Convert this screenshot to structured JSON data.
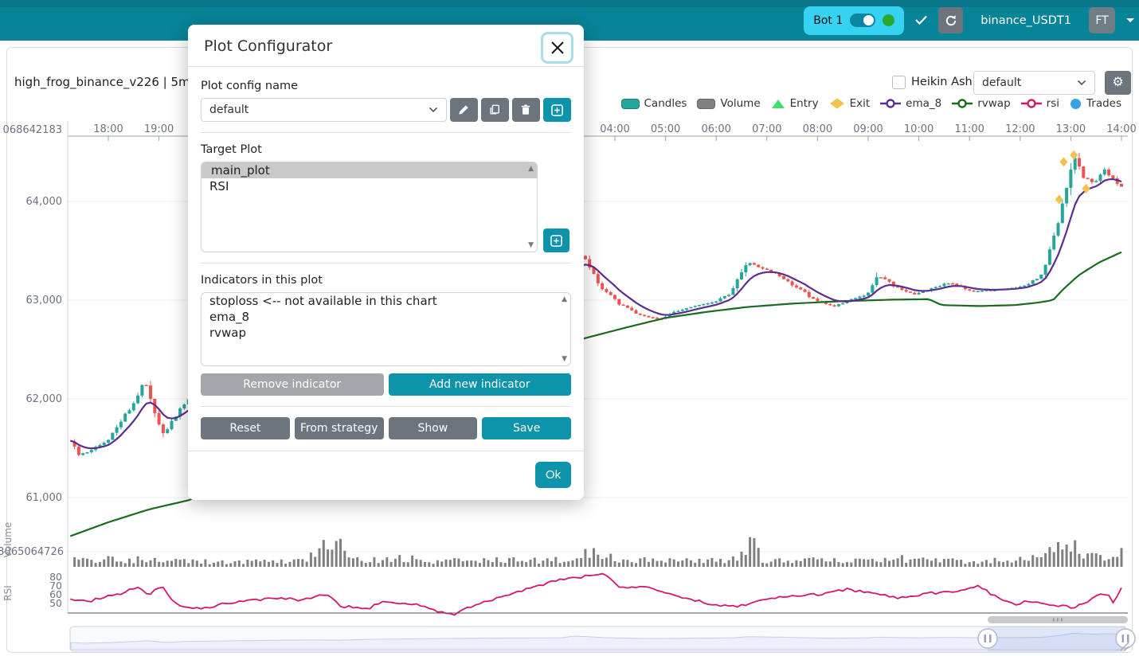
{
  "navbar": {
    "bot": {
      "label": "Bot 1",
      "online_color": "#2aa82a",
      "pill_bg": "#35d2f2"
    },
    "pair_text": "binance_USDT1",
    "avatar_text": "FT"
  },
  "chart_header": {
    "title": "high_frog_binance_v226 | 5m",
    "heikin_ashi_label": "Heikin Ashi",
    "plot_select_value": "default"
  },
  "legend": {
    "items": [
      {
        "label": "Candles",
        "color": "#26a69a",
        "shape": "rect"
      },
      {
        "label": "Volume",
        "color": "#808080",
        "shape": "rect"
      },
      {
        "label": "Entry",
        "color": "#3ce06a",
        "shape": "triangle"
      },
      {
        "label": "Exit",
        "color": "#f2c14e",
        "shape": "diamond"
      },
      {
        "label": "ema_8",
        "color": "#5c2d91",
        "shape": "line-circle"
      },
      {
        "label": "rvwap",
        "color": "#1b6b1f",
        "shape": "line-circle"
      },
      {
        "label": "rsi",
        "color": "#d6156f",
        "shape": "line-circle"
      },
      {
        "label": "Trades",
        "color": "#38a1e0",
        "shape": "circle"
      }
    ]
  },
  "modal": {
    "title": "Plot Configurator",
    "config_name_label": "Plot config name",
    "config_select_value": "default",
    "target_plot_label": "Target Plot",
    "target_plots": [
      "main_plot",
      "RSI"
    ],
    "selected_target": "main_plot",
    "indicators_label": "Indicators in this plot",
    "indicators": [
      "stoploss <-- not available in this chart",
      "ema_8",
      "rvwap"
    ],
    "remove_indicator_label": "Remove indicator",
    "add_indicator_label": "Add new indicator",
    "reset_label": "Reset",
    "from_strategy_label": "From strategy",
    "show_label": "Show",
    "save_label": "Save",
    "ok_label": "Ok"
  },
  "chart_data": {
    "type": "candlestick",
    "title": "high_frog_binance_v226 | 5m",
    "timeframe": "5m",
    "x_unit": "hours; 18=18:00 prev day, 28=04:00, 38=14:00",
    "time_ticks": [
      [
        18,
        "18:00"
      ],
      [
        19,
        "19:00"
      ],
      [
        28,
        "04:00"
      ],
      [
        29,
        "05:00"
      ],
      [
        30,
        "06:00"
      ],
      [
        31,
        "07:00"
      ],
      [
        32,
        "08:00"
      ],
      [
        33,
        "09:00"
      ],
      [
        34,
        "10:00"
      ],
      [
        35,
        "11:00"
      ],
      [
        36,
        "12:00"
      ],
      [
        37,
        "13:00"
      ],
      [
        38,
        "14:00"
      ]
    ],
    "price_ticks": [
      [
        "068642183",
        64726
      ],
      [
        "64,000",
        64000
      ],
      [
        "63,000",
        63000
      ],
      [
        "62,000",
        62000
      ],
      [
        "61,000",
        61000
      ]
    ],
    "volume_axis_label": "3065064726",
    "rsi_ticks": [
      80,
      70,
      60,
      50
    ],
    "pane_labels": {
      "volume": "Volume",
      "rsi": "RSI"
    },
    "colors": {
      "up": "#26a69a",
      "down": "#ef5350",
      "volume": "#808080",
      "ema": "#5c2d91",
      "rvwap": "#1b6b1f",
      "rsi": "#d6156f",
      "exit": "#f2c14e",
      "entry": "#3ce06a"
    },
    "series": {
      "candles": [
        [
          17.2,
          61580
        ],
        [
          17.45,
          61430
        ],
        [
          17.7,
          61500
        ],
        [
          17.95,
          61560
        ],
        [
          18.2,
          61750
        ],
        [
          18.5,
          61950
        ],
        [
          18.72,
          62180
        ],
        [
          18.9,
          61900
        ],
        [
          19.08,
          61630
        ],
        [
          19.3,
          61800
        ],
        [
          19.55,
          61980
        ],
        [
          20,
          62050
        ],
        [
          21,
          62250
        ],
        [
          22,
          62400
        ],
        [
          22.5,
          62300
        ],
        [
          23,
          62550
        ],
        [
          24,
          62750
        ],
        [
          25,
          62900
        ],
        [
          26,
          63000
        ],
        [
          26.9,
          63060
        ],
        [
          27.15,
          63580
        ],
        [
          27.4,
          63420
        ],
        [
          27.7,
          63150
        ],
        [
          28.1,
          62960
        ],
        [
          28.5,
          62850
        ],
        [
          28.9,
          62800
        ],
        [
          29.2,
          62890
        ],
        [
          29.6,
          62940
        ],
        [
          30,
          62990
        ],
        [
          30.3,
          63070
        ],
        [
          30.6,
          63400
        ],
        [
          30.85,
          63330
        ],
        [
          31.2,
          63270
        ],
        [
          31.6,
          63120
        ],
        [
          32,
          62990
        ],
        [
          32.35,
          62940
        ],
        [
          32.7,
          63010
        ],
        [
          33,
          63070
        ],
        [
          33.15,
          63260
        ],
        [
          33.5,
          63150
        ],
        [
          33.9,
          63050
        ],
        [
          34.2,
          63110
        ],
        [
          34.6,
          63180
        ],
        [
          35,
          63090
        ],
        [
          35.4,
          63100
        ],
        [
          35.8,
          63120
        ],
        [
          36.1,
          63150
        ],
        [
          36.45,
          63260
        ],
        [
          36.7,
          63700
        ],
        [
          36.9,
          64150
        ],
        [
          37.05,
          64480
        ],
        [
          37.2,
          64280
        ],
        [
          37.45,
          64180
        ],
        [
          37.65,
          64320
        ],
        [
          37.8,
          64240
        ],
        [
          38,
          64140
        ]
      ],
      "rvwap": [
        [
          17.2,
          60600
        ],
        [
          18,
          60750
        ],
        [
          18.8,
          60880
        ],
        [
          19.6,
          60975
        ],
        [
          20.5,
          61180
        ],
        [
          21.5,
          61480
        ],
        [
          22.5,
          61800
        ],
        [
          23.5,
          62100
        ],
        [
          24.5,
          62330
        ],
        [
          25.5,
          62480
        ],
        [
          26.5,
          62560
        ],
        [
          27.3,
          62600
        ],
        [
          28.2,
          62720
        ],
        [
          29,
          62820
        ],
        [
          29.8,
          62880
        ],
        [
          30.6,
          62930
        ],
        [
          31.5,
          62965
        ],
        [
          32.5,
          62990
        ],
        [
          33.5,
          63005
        ],
        [
          34.2,
          63010
        ],
        [
          34.45,
          62950
        ],
        [
          35.2,
          62940
        ],
        [
          35.9,
          62950
        ],
        [
          36.35,
          62975
        ],
        [
          36.65,
          63000
        ],
        [
          36.85,
          63110
        ],
        [
          37.15,
          63250
        ],
        [
          37.55,
          63380
        ],
        [
          38.1,
          63510
        ]
      ],
      "rsi": [
        [
          17.2,
          54
        ],
        [
          17.6,
          52
        ],
        [
          17.9,
          57
        ],
        [
          18.2,
          60
        ],
        [
          18.55,
          68
        ],
        [
          18.8,
          60
        ],
        [
          19.05,
          70
        ],
        [
          19.35,
          48
        ],
        [
          19.8,
          44
        ],
        [
          20.3,
          50
        ],
        [
          20.8,
          53
        ],
        [
          21.3,
          57
        ],
        [
          21.8,
          54
        ],
        [
          22.3,
          60
        ],
        [
          22.6,
          47
        ],
        [
          23.1,
          44
        ],
        [
          23.45,
          52
        ],
        [
          23.8,
          50
        ],
        [
          24.2,
          48
        ],
        [
          24.5,
          41
        ],
        [
          24.8,
          37
        ],
        [
          25.3,
          50
        ],
        [
          25.6,
          55
        ],
        [
          26.2,
          65
        ],
        [
          26.6,
          72
        ],
        [
          26.9,
          78
        ],
        [
          27.3,
          80
        ],
        [
          27.8,
          85
        ],
        [
          28.1,
          68
        ],
        [
          28.5,
          70
        ],
        [
          29,
          62
        ],
        [
          29.5,
          55
        ],
        [
          30,
          48
        ],
        [
          30.4,
          46
        ],
        [
          30.9,
          53
        ],
        [
          31.4,
          59
        ],
        [
          32,
          60
        ],
        [
          32.6,
          66
        ],
        [
          33.1,
          62
        ],
        [
          33.6,
          56
        ],
        [
          34.1,
          61
        ],
        [
          34.7,
          64
        ],
        [
          35.2,
          70
        ],
        [
          35.55,
          56
        ],
        [
          35.85,
          49
        ],
        [
          36.2,
          53
        ],
        [
          36.7,
          48
        ],
        [
          37.05,
          45
        ],
        [
          37.3,
          51
        ],
        [
          37.55,
          62
        ],
        [
          37.75,
          60
        ],
        [
          37.88,
          46
        ],
        [
          37.95,
          72
        ],
        [
          38.1,
          57
        ]
      ],
      "volume": [
        [
          17.2,
          9
        ],
        [
          18,
          11
        ],
        [
          19,
          9
        ],
        [
          20,
          7
        ],
        [
          21,
          7
        ],
        [
          21.8,
          9
        ],
        [
          22.3,
          30
        ],
        [
          22.5,
          38
        ],
        [
          22.7,
          14
        ],
        [
          23.2,
          9
        ],
        [
          23.7,
          15
        ],
        [
          24.2,
          8
        ],
        [
          25,
          9
        ],
        [
          25.6,
          11
        ],
        [
          26.2,
          8
        ],
        [
          27,
          10
        ],
        [
          27.5,
          22
        ],
        [
          27.9,
          13
        ],
        [
          28.5,
          9
        ],
        [
          29.2,
          10
        ],
        [
          29.8,
          8
        ],
        [
          30.3,
          9
        ],
        [
          30.6,
          28
        ],
        [
          30.75,
          33
        ],
        [
          30.9,
          10
        ],
        [
          31.5,
          8
        ],
        [
          32,
          10
        ],
        [
          32.5,
          9
        ],
        [
          33,
          11
        ],
        [
          33.5,
          12
        ],
        [
          34,
          9
        ],
        [
          34.5,
          8
        ],
        [
          35,
          8
        ],
        [
          35.5,
          9
        ],
        [
          36,
          10
        ],
        [
          36.4,
          12
        ],
        [
          36.7,
          30
        ],
        [
          36.9,
          42
        ],
        [
          37.05,
          38
        ],
        [
          37.2,
          26
        ],
        [
          37.35,
          14
        ],
        [
          37.6,
          12
        ],
        [
          37.8,
          11
        ],
        [
          38,
          18
        ]
      ]
    },
    "exit_markers": [
      [
        36.77,
        64020
      ],
      [
        36.86,
        64400
      ],
      [
        37.06,
        64470
      ],
      [
        37.3,
        64130
      ]
    ],
    "navigator": {
      "selection_start_x": 1240,
      "selection_end_x": 1413
    }
  }
}
